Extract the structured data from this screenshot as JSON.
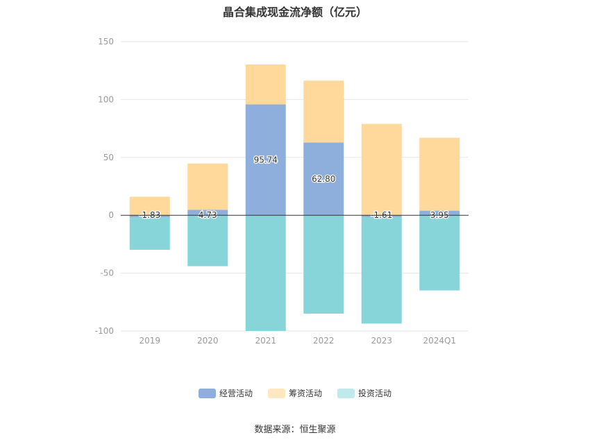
{
  "title": "晶合集成现金流净额（亿元）",
  "source": "数据来源：恒生聚源",
  "colors": {
    "operating": "#8eaedb",
    "financing": "#ffd99b",
    "investing": "#87d5d8",
    "grid": "#e6e6e6",
    "axis_text": "#999999",
    "zero_line": "#333333"
  },
  "chart_data": {
    "type": "bar",
    "stacked": true,
    "title": "晶合集成现金流净额（亿元）",
    "categories": [
      "2019",
      "2020",
      "2021",
      "2022",
      "2023",
      "2024Q1"
    ],
    "ylim": [
      -100,
      150
    ],
    "yticks": [
      150,
      100,
      50,
      0,
      -50,
      -100
    ],
    "grid": true,
    "legend_position": "bottom",
    "series": [
      {
        "name": "经营活动",
        "values": [
          -1.83,
          4.73,
          95.74,
          62.8,
          -1.61,
          3.95
        ],
        "labels": [
          "-1.83",
          "4.73",
          "95.74",
          "62.80",
          "-1.61",
          "3.95"
        ]
      },
      {
        "name": "筹资活动",
        "values": [
          16,
          40,
          34.5,
          53.5,
          79,
          63
        ]
      },
      {
        "name": "投资活动",
        "values": [
          -28,
          -44,
          -100,
          -85,
          -92,
          -65
        ]
      }
    ]
  }
}
